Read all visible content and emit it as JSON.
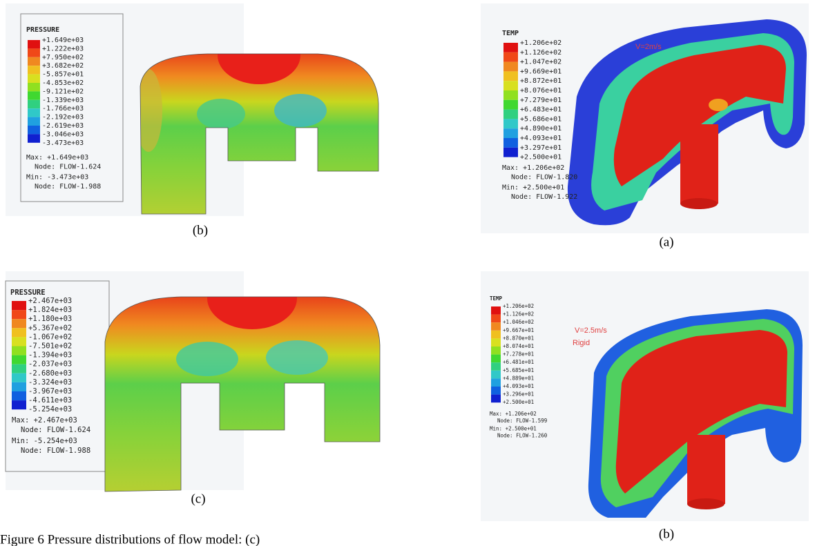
{
  "panels": [
    {
      "title": "PRESSURE",
      "levels": [
        "+1.649e+03",
        "+1.222e+03",
        "+7.950e+02",
        "+3.682e+02",
        "-5.857e+01",
        "-4.853e+02",
        "-9.121e+02",
        "-1.339e+03",
        "-1.766e+03",
        "-2.192e+03",
        "-2.619e+03",
        "-3.046e+03",
        "-3.473e+03"
      ],
      "max": "Max: +1.649e+03",
      "max_node": "Node: FLOW-1.624",
      "min": "Min: -3.473e+03",
      "min_node": "Node: FLOW-1.988",
      "caption": "(b)",
      "annotations": []
    },
    {
      "title": "TEMP",
      "levels": [
        "+1.206e+02",
        "+1.126e+02",
        "+1.047e+02",
        "+9.669e+01",
        "+8.872e+01",
        "+8.076e+01",
        "+7.279e+01",
        "+6.483e+01",
        "+5.686e+01",
        "+4.890e+01",
        "+4.093e+01",
        "+3.297e+01",
        "+2.500e+01"
      ],
      "max": "Max: +1.206e+02",
      "max_node": "Node: FLOW-1.820",
      "min": "Min: +2.500e+01",
      "min_node": "Node: FLOW-1.922",
      "caption": "(a)",
      "annotations": [
        "V=2m/s"
      ]
    },
    {
      "title": "PRESSURE",
      "levels": [
        "+2.467e+03",
        "+1.824e+03",
        "+1.180e+03",
        "+5.367e+02",
        "-1.067e+02",
        "-7.501e+02",
        "-1.394e+03",
        "-2.037e+03",
        "-2.680e+03",
        "-3.324e+03",
        "-3.967e+03",
        "-4.611e+03",
        "-5.254e+03"
      ],
      "max": "Max: +2.467e+03",
      "max_node": "Node: FLOW-1.624",
      "min": "Min: -5.254e+03",
      "min_node": "Node: FLOW-1.988",
      "caption": "(c)",
      "annotations": []
    },
    {
      "title": "TEMP",
      "levels": [
        "+1.206e+02",
        "+1.126e+02",
        "+1.046e+02",
        "+9.667e+01",
        "+8.870e+01",
        "+8.074e+01",
        "+7.278e+01",
        "+6.481e+01",
        "+5.685e+01",
        "+4.889e+01",
        "+4.093e+01",
        "+3.296e+01",
        "+2.500e+01"
      ],
      "max": "Max: +1.206e+02",
      "max_node": "Node: FLOW-1.599",
      "min": "Min: +2.500e+01",
      "min_node": "Node: FLOW-1.260",
      "caption": "(b)",
      "annotations": [
        "V=2.5m/s",
        "Rigid"
      ]
    }
  ],
  "figure_caption": "Figure 6 Pressure distributions of flow model: (c)"
}
